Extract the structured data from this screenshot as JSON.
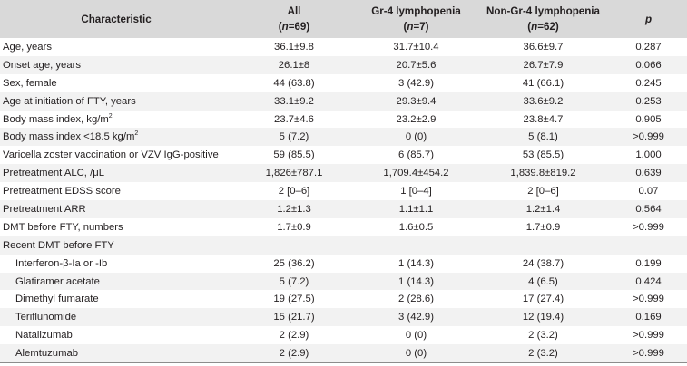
{
  "header": {
    "characteristic": "Characteristic",
    "all": "All",
    "all_n": "(n=69)",
    "gr4": "Gr-4 lymphopenia",
    "gr4_n": "(n=7)",
    "non_gr4": "Non-Gr-4 lymphopenia",
    "non_gr4_n": "(n=62)",
    "p": "p"
  },
  "rows": [
    {
      "label": "Age, years",
      "all": "36.1±9.8",
      "gr4": "31.7±10.4",
      "non_gr4": "36.6±9.7",
      "p": "0.287"
    },
    {
      "label": "Onset age, years",
      "all": "26.1±8",
      "gr4": "20.7±5.6",
      "non_gr4": "26.7±7.9",
      "p": "0.066"
    },
    {
      "label": "Sex, female",
      "all": "44 (63.8)",
      "gr4": "3 (42.9)",
      "non_gr4": "41 (66.1)",
      "p": "0.245"
    },
    {
      "label": "Age at initiation of FTY, years",
      "all": "33.1±9.2",
      "gr4": "29.3±9.4",
      "non_gr4": "33.6±9.2",
      "p": "0.253"
    },
    {
      "label": "Body mass index, kg/m",
      "sup": "2",
      "all": "23.7±4.6",
      "gr4": "23.2±2.9",
      "non_gr4": "23.8±4.7",
      "p": "0.905"
    },
    {
      "label": "Body mass index <18.5 kg/m",
      "sup": "2",
      "all": "5 (7.2)",
      "gr4": "0 (0)",
      "non_gr4": "5 (8.1)",
      "p": ">0.999"
    },
    {
      "label": "Varicella zoster vaccination or VZV IgG-positive",
      "all": "59 (85.5)",
      "gr4": "6 (85.7)",
      "non_gr4": "53 (85.5)",
      "p": "1.000"
    },
    {
      "label": "Pretreatment ALC, /μL",
      "all": "1,826±787.1",
      "gr4": "1,709.4±454.2",
      "non_gr4": "1,839.8±819.2",
      "p": "0.639"
    },
    {
      "label": "Pretreatment EDSS score",
      "all": "2 [0–6]",
      "gr4": "1 [0–4]",
      "non_gr4": "2 [0–6]",
      "p": "0.07"
    },
    {
      "label": "Pretreatment ARR",
      "all": "1.2±1.3",
      "gr4": "1.1±1.1",
      "non_gr4": "1.2±1.4",
      "p": "0.564"
    },
    {
      "label": "DMT before FTY, numbers",
      "all": "1.7±0.9",
      "gr4": "1.6±0.5",
      "non_gr4": "1.7±0.9",
      "p": ">0.999"
    },
    {
      "label": "Recent DMT before FTY",
      "all": "",
      "gr4": "",
      "non_gr4": "",
      "p": ""
    },
    {
      "label": "Interferon-β-Ia or -Ib",
      "indent": true,
      "all": "25 (36.2)",
      "gr4": "1 (14.3)",
      "non_gr4": "24 (38.7)",
      "p": "0.199"
    },
    {
      "label": "Glatiramer acetate",
      "indent": true,
      "all": "5 (7.2)",
      "gr4": "1 (14.3)",
      "non_gr4": "4 (6.5)",
      "p": "0.424"
    },
    {
      "label": "Dimethyl fumarate",
      "indent": true,
      "all": "19 (27.5)",
      "gr4": "2 (28.6)",
      "non_gr4": "17 (27.4)",
      "p": ">0.999"
    },
    {
      "label": "Teriflunomide",
      "indent": true,
      "all": "15 (21.7)",
      "gr4": "3 (42.9)",
      "non_gr4": "12 (19.4)",
      "p": "0.169"
    },
    {
      "label": "Natalizumab",
      "indent": true,
      "all": "2 (2.9)",
      "gr4": "0 (0)",
      "non_gr4": "2 (3.2)",
      "p": ">0.999"
    },
    {
      "label": "Alemtuzumab",
      "indent": true,
      "all": "2 (2.9)",
      "gr4": "0 (0)",
      "non_gr4": "2 (3.2)",
      "p": ">0.999"
    }
  ]
}
